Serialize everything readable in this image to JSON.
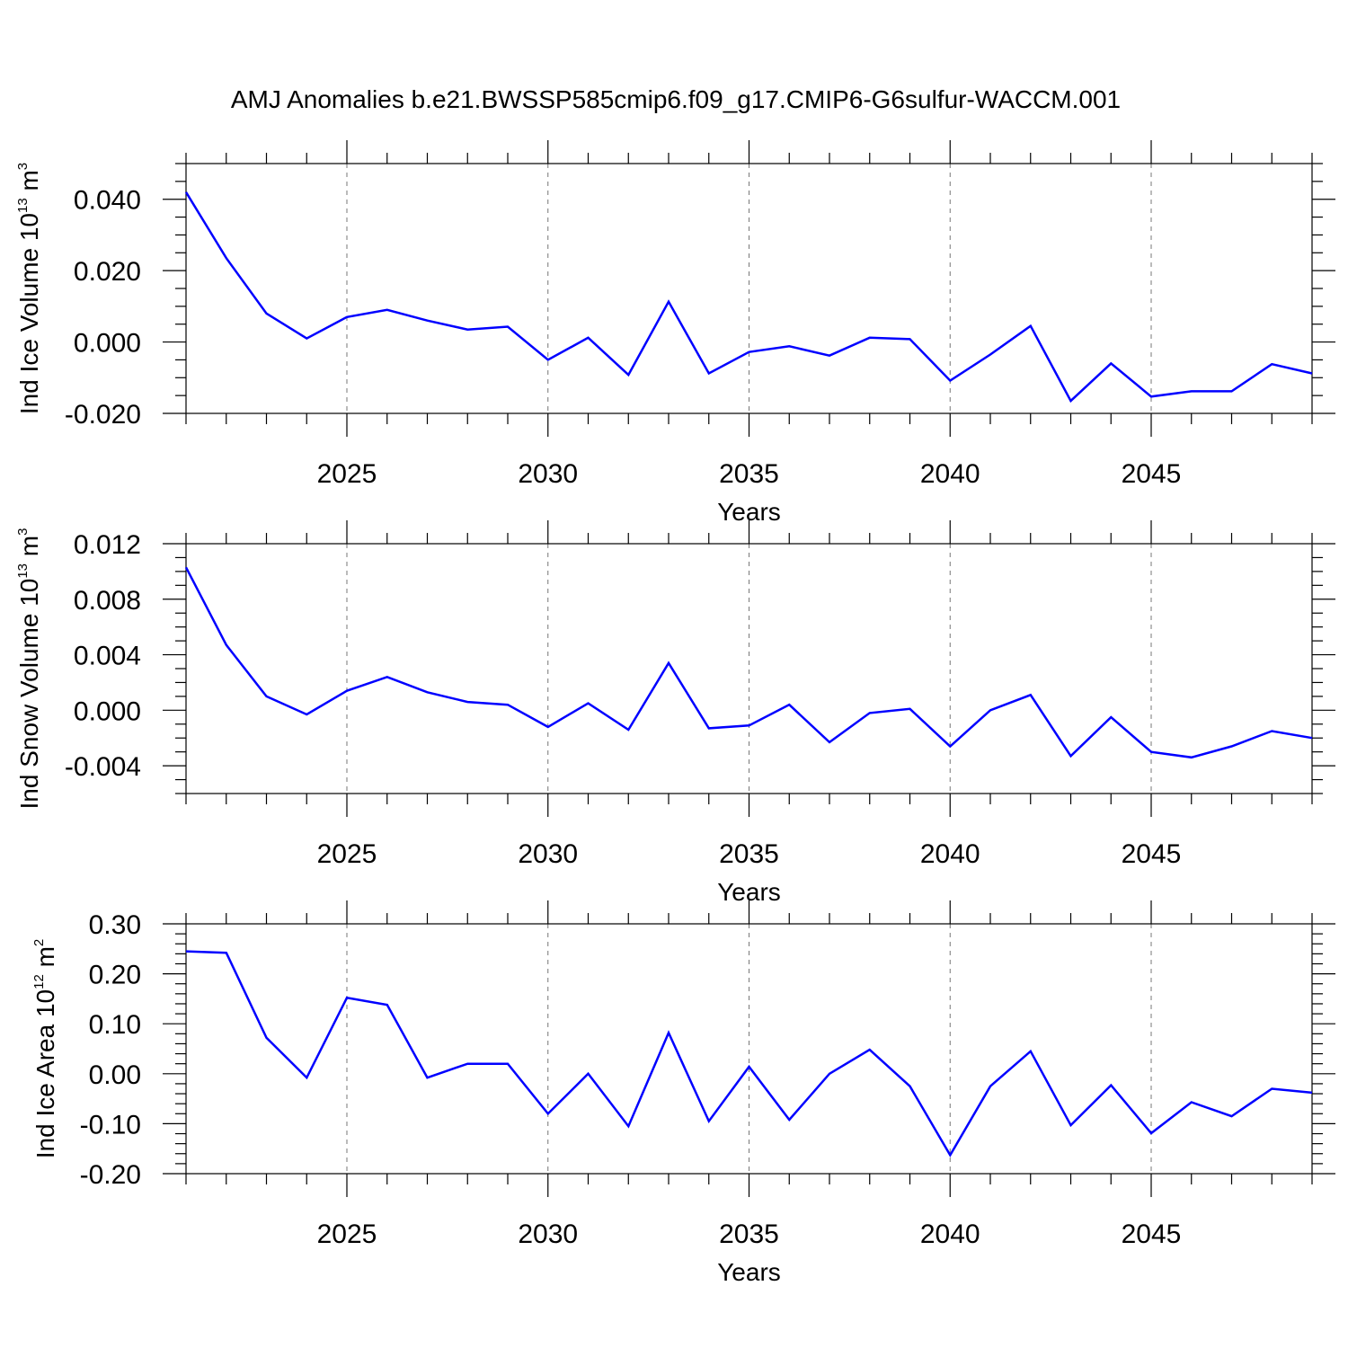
{
  "title": "AMJ Anomalies b.e21.BWSSP585cmip6.f09_g17.CMIP6-G6sulfur-WACCM.001",
  "chart_data": [
    {
      "type": "line",
      "ylabel_main": "Ind Ice Volume 10",
      "ylabel_exp": "13",
      "ylabel_unit": " m",
      "ylabel_unit_exp": "3",
      "xlabel": "Years",
      "xlim": [
        2021,
        2049
      ],
      "ylim": [
        -0.02,
        0.05
      ],
      "x_major_ticks": [
        2025,
        2030,
        2035,
        2040,
        2045
      ],
      "y_major_ticks": [
        -0.02,
        0.0,
        0.02,
        0.04
      ],
      "y_tick_labels": [
        "-0.020",
        "0.000",
        "0.020",
        "0.040"
      ],
      "y_minor_step": 0.005,
      "series": [
        {
          "name": "Ind Ice Volume",
          "color": "#0000ff",
          "x": [
            2021,
            2022,
            2023,
            2024,
            2025,
            2026,
            2027,
            2028,
            2029,
            2030,
            2031,
            2032,
            2033,
            2034,
            2035,
            2036,
            2037,
            2038,
            2039,
            2040,
            2041,
            2042,
            2043,
            2044,
            2045,
            2046,
            2047,
            2048,
            2049
          ],
          "values": [
            0.042,
            0.0235,
            0.008,
            0.001,
            0.007,
            0.009,
            0.006,
            0.0035,
            0.0043,
            -0.005,
            0.0012,
            -0.0092,
            0.0113,
            -0.0088,
            -0.0028,
            -0.0012,
            -0.0038,
            0.0012,
            0.0008,
            -0.0108,
            -0.0035,
            0.0045,
            -0.0165,
            -0.006,
            -0.0153,
            -0.0138,
            -0.0138,
            -0.0062,
            -0.0088
          ]
        }
      ]
    },
    {
      "type": "line",
      "ylabel_main": "Ind Snow Volume 10",
      "ylabel_exp": "13",
      "ylabel_unit": " m",
      "ylabel_unit_exp": "3",
      "xlabel": "Years",
      "xlim": [
        2021,
        2049
      ],
      "ylim": [
        -0.006,
        0.012
      ],
      "x_major_ticks": [
        2025,
        2030,
        2035,
        2040,
        2045
      ],
      "y_major_ticks": [
        -0.004,
        0.0,
        0.004,
        0.008,
        0.012
      ],
      "y_tick_labels": [
        "-0.004",
        "0.000",
        "0.004",
        "0.008",
        "0.012"
      ],
      "y_minor_step": 0.001,
      "series": [
        {
          "name": "Ind Snow Volume",
          "color": "#0000ff",
          "x": [
            2021,
            2022,
            2023,
            2024,
            2025,
            2026,
            2027,
            2028,
            2029,
            2030,
            2031,
            2032,
            2033,
            2034,
            2035,
            2036,
            2037,
            2038,
            2039,
            2040,
            2041,
            2042,
            2043,
            2044,
            2045,
            2046,
            2047,
            2048,
            2049
          ],
          "values": [
            0.0103,
            0.0047,
            0.001,
            -0.0003,
            0.0014,
            0.0024,
            0.0013,
            0.0006,
            0.0004,
            -0.0012,
            0.0005,
            -0.0014,
            0.0034,
            -0.0013,
            -0.0011,
            0.0004,
            -0.0023,
            -0.0002,
            0.0001,
            -0.0026,
            0.0,
            0.0011,
            -0.0033,
            -0.0005,
            -0.003,
            -0.0034,
            -0.0026,
            -0.0015,
            -0.002
          ]
        }
      ]
    },
    {
      "type": "line",
      "ylabel_main": "Ind Ice Area 10",
      "ylabel_exp": "12",
      "ylabel_unit": " m",
      "ylabel_unit_exp": "2",
      "xlabel": "Years",
      "xlim": [
        2021,
        2049
      ],
      "ylim": [
        -0.2,
        0.3
      ],
      "x_major_ticks": [
        2025,
        2030,
        2035,
        2040,
        2045
      ],
      "y_major_ticks": [
        -0.2,
        -0.1,
        0.0,
        0.1,
        0.2,
        0.3
      ],
      "y_tick_labels": [
        "-0.20",
        "-0.10",
        "0.00",
        "0.10",
        "0.20",
        "0.30"
      ],
      "y_minor_step": 0.02,
      "series": [
        {
          "name": "Ind Ice Area",
          "color": "#0000ff",
          "x": [
            2021,
            2022,
            2023,
            2024,
            2025,
            2026,
            2027,
            2028,
            2029,
            2030,
            2031,
            2032,
            2033,
            2034,
            2035,
            2036,
            2037,
            2038,
            2039,
            2040,
            2041,
            2042,
            2043,
            2044,
            2045,
            2046,
            2047,
            2048,
            2049
          ],
          "values": [
            0.245,
            0.242,
            0.072,
            -0.008,
            0.152,
            0.138,
            -0.008,
            0.02,
            0.02,
            -0.08,
            0.0,
            -0.105,
            0.082,
            -0.095,
            0.014,
            -0.092,
            0.0,
            0.048,
            -0.025,
            -0.163,
            -0.025,
            0.045,
            -0.103,
            -0.023,
            -0.119,
            -0.057,
            -0.085,
            -0.03,
            -0.038
          ]
        }
      ]
    }
  ]
}
